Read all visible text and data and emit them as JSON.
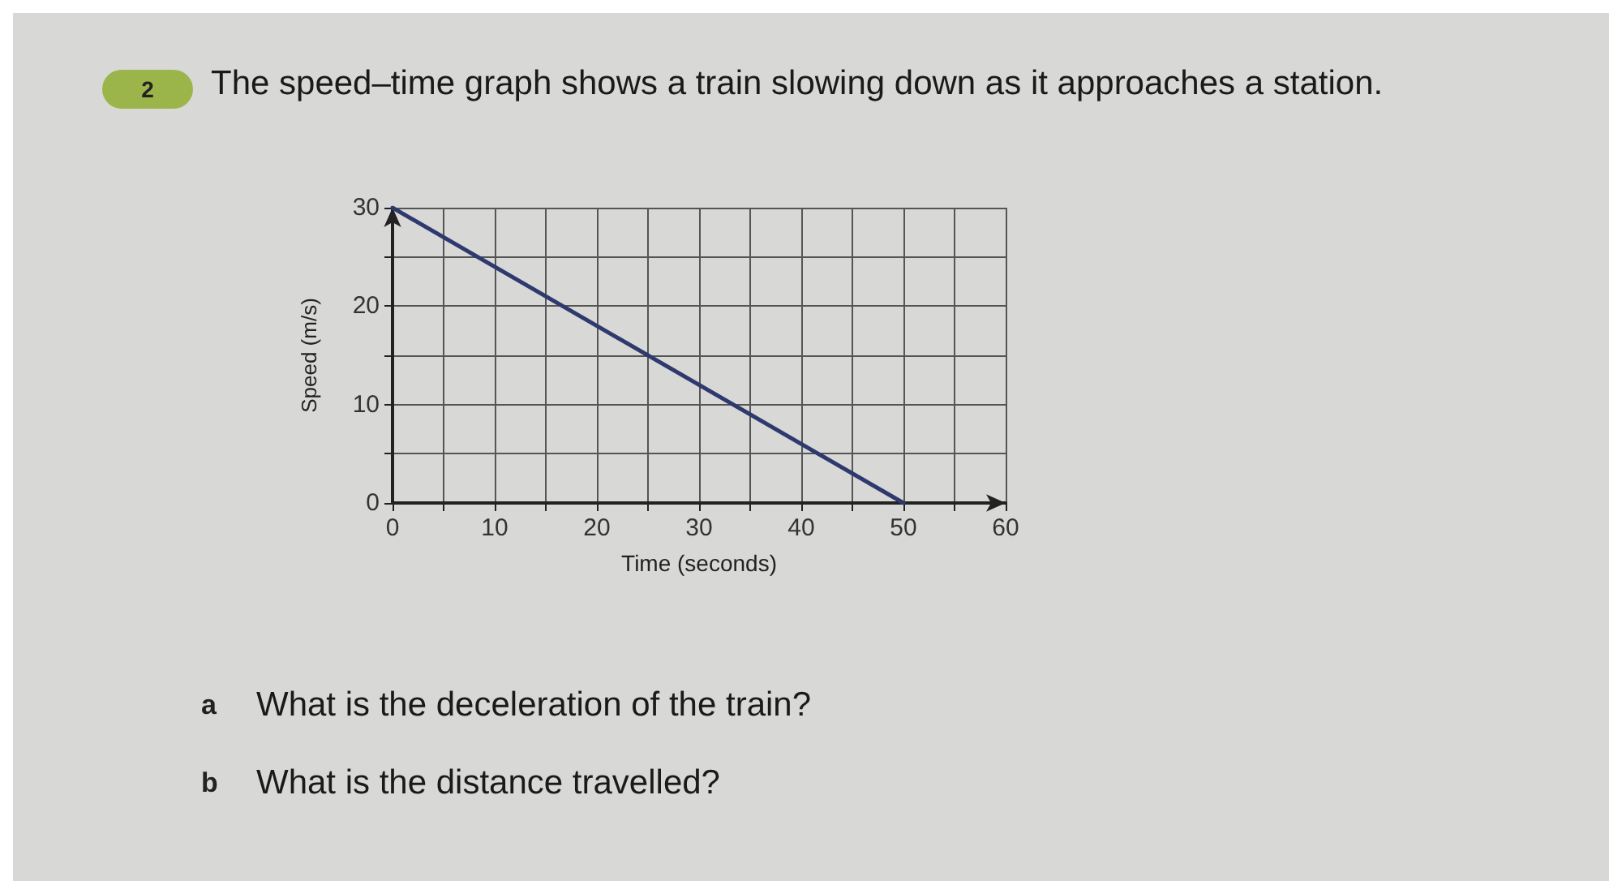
{
  "chart_data": {
    "type": "line",
    "title": "The speed–time graph shows a train slowing down as it approaches a station.",
    "xlabel": "Time (seconds)",
    "ylabel": "Speed (m/s)",
    "x": [
      0,
      50
    ],
    "series": [
      {
        "color": "#2e3a6e",
        "values": [
          30,
          0
        ]
      }
    ],
    "xlim": [
      0,
      60
    ],
    "ylim": [
      0,
      30
    ],
    "xticks": [
      0,
      {
        "value": 5,
        "label": null
      },
      10,
      {
        "value": 15,
        "label": null
      },
      20,
      {
        "value": 25,
        "label": null
      },
      30,
      {
        "value": 35,
        "label": null
      },
      40,
      {
        "value": 45,
        "label": null
      },
      50,
      {
        "value": 55,
        "label": null
      },
      60
    ],
    "yticks": [
      0,
      {
        "value": 5,
        "label": null
      },
      10,
      {
        "value": 15,
        "label": null
      },
      20,
      {
        "value": 25,
        "label": null
      },
      30
    ],
    "grid": true,
    "marker": "none",
    "line_style": "solid",
    "annotations": [
      "2",
      "a What is the deceleration of the train?",
      "b What is the distance travelled?"
    ]
  }
}
